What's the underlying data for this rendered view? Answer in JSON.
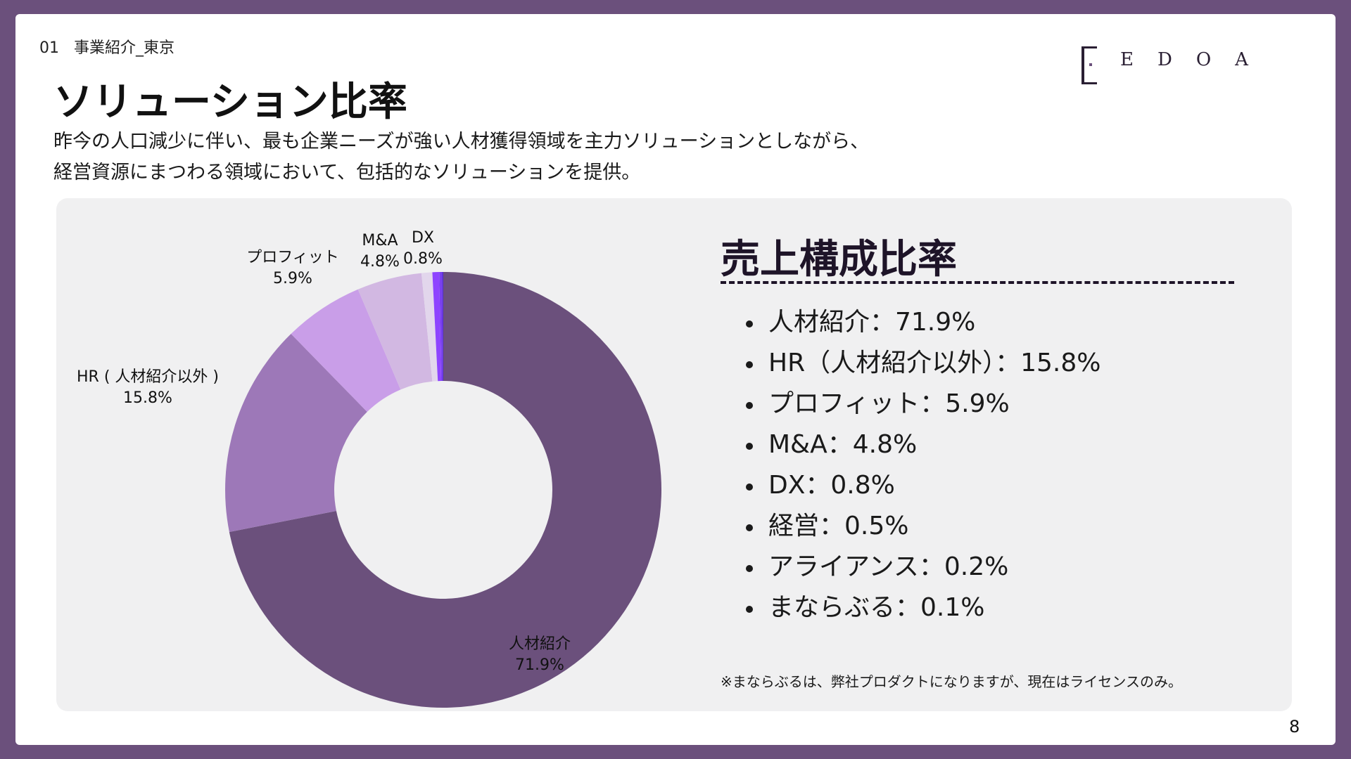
{
  "header": {
    "section_number": "01",
    "section_name": "事業紹介_東京",
    "logo_text": "EDOA",
    "title": "ソリューション比率",
    "description_line1": "昨今の人口減少に伴い、最も企業ニーズが強い人材獲得領域を主力ソリューションとしながら、",
    "description_line2": "経営資源にまつわる領域において、包括的なソリューションを提供。"
  },
  "summary": {
    "title": "売上構成比率",
    "items": [
      "人材紹介：71.9%",
      "HR（人材紹介以外）：15.8%",
      "プロフィット：5.9%",
      "M&A：4.8%",
      "DX：0.8%",
      "経営：0.5%",
      "アライアンス：0.2%",
      "まならぶる：0.1%"
    ],
    "footnote": "※まならぶるは、弊社プロダクトになりますが、現在はライセンスのみ。"
  },
  "page_number": "8",
  "chart_data": {
    "type": "pie",
    "donut": true,
    "categories": [
      "人材紹介",
      "HR（人材紹介以外）",
      "プロフィット",
      "M&A",
      "DX",
      "経営",
      "アライアンス",
      "まならぶる"
    ],
    "values": [
      71.9,
      15.8,
      5.9,
      4.8,
      0.8,
      0.5,
      0.2,
      0.1
    ],
    "colors": [
      "#6b507c",
      "#9d78b8",
      "#c99ee8",
      "#d2b8e2",
      "#e2d6ec",
      "#8e44ff",
      "#7a3ff0",
      "#5a2dd6"
    ],
    "labels": [
      {
        "name": "人材紹介",
        "value": "71.9%"
      },
      {
        "name": "HR ( 人材紹介以外 )",
        "value": "15.8%"
      },
      {
        "name": "プロフィット",
        "value": "5.9%"
      },
      {
        "name": "M&A",
        "value": "4.8%"
      },
      {
        "name": "DX",
        "value": "0.8%"
      }
    ]
  }
}
